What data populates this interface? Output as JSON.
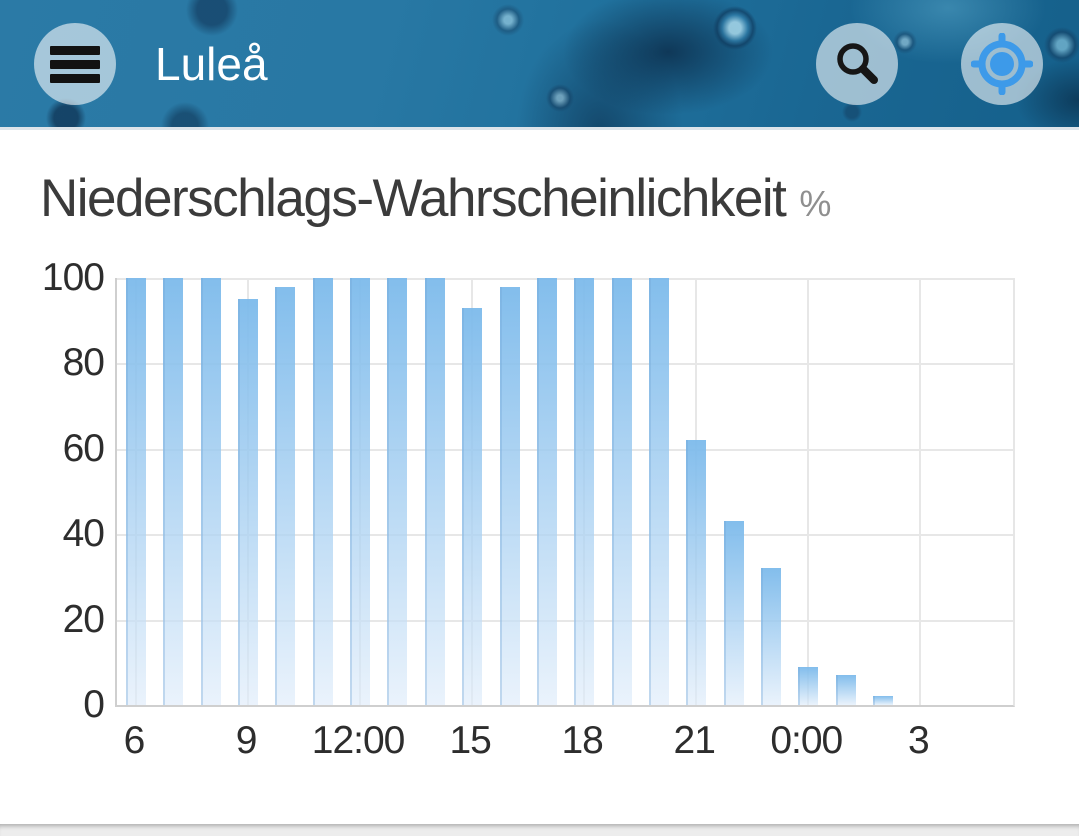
{
  "header": {
    "title": "Luleå",
    "icons": {
      "menu": "hamburger-icon",
      "search": "search-icon",
      "locate": "gps-crosshair-icon"
    }
  },
  "chart": {
    "title": "Niederschlags-Wahrscheinlichkeit",
    "unit_label": "%"
  },
  "chart_data": {
    "type": "bar",
    "title": "Niederschlags-Wahrscheinlichkeit",
    "ylabel": "%",
    "x": [
      "6:00",
      "7:00",
      "8:00",
      "9:00",
      "10:00",
      "11:00",
      "12:00",
      "13:00",
      "14:00",
      "15:00",
      "16:00",
      "17:00",
      "18:00",
      "19:00",
      "20:00",
      "21:00",
      "22:00",
      "23:00",
      "0:00",
      "1:00",
      "2:00"
    ],
    "values": [
      100,
      100,
      100,
      95,
      98,
      100,
      100,
      100,
      100,
      93,
      98,
      100,
      100,
      100,
      100,
      62,
      43,
      32,
      9,
      7,
      2
    ],
    "x_ticks": [
      {
        "index": 0,
        "label": "6"
      },
      {
        "index": 3,
        "label": "9"
      },
      {
        "index": 6,
        "label": "12:00"
      },
      {
        "index": 9,
        "label": "15"
      },
      {
        "index": 12,
        "label": "18"
      },
      {
        "index": 15,
        "label": "21"
      },
      {
        "index": 18,
        "label": "0:00"
      },
      {
        "index": 21,
        "label": "3"
      }
    ],
    "y_ticks": [
      0,
      20,
      40,
      60,
      80,
      100
    ],
    "ylim": [
      0,
      100
    ],
    "grid": true,
    "legend_position": "none",
    "bar_color_top": "#7cbaeb",
    "bar_color_bottom": "#dfecfa"
  },
  "colors": {
    "header_base": "#2374a1",
    "accent_blue": "#3d9ae9",
    "title_text": "#3b3b3b",
    "unit_text": "#8f8f8f",
    "axis_text": "#2d2d2d",
    "gridline": "#e7e7e7"
  }
}
